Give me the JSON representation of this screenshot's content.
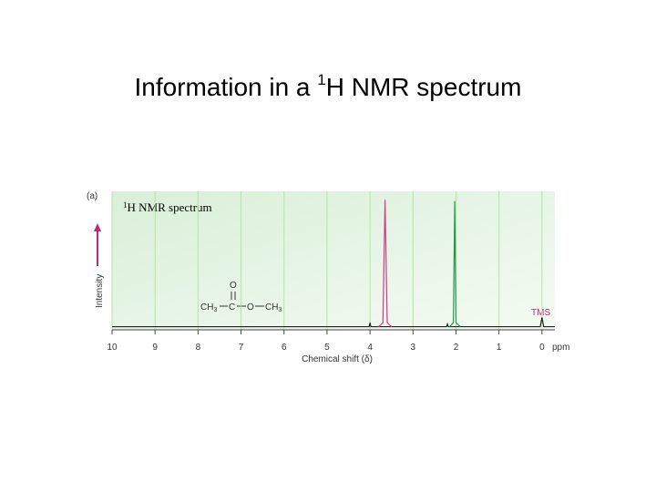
{
  "title_parts": [
    "Information in a ",
    "1",
    "H NMR spectrum"
  ],
  "chart_data": {
    "type": "line",
    "panel_label": "(a)",
    "inset_label_parts": [
      "1",
      "H NMR spectrum"
    ],
    "ylabel": "Intensity",
    "xlabel": "Chemical shift (δ)",
    "xunit": "ppm",
    "xlim": [
      10,
      -0.3
    ],
    "xticks": [
      10,
      9,
      8,
      7,
      6,
      5,
      4,
      3,
      2,
      1,
      0
    ],
    "ylim": [
      0,
      100
    ],
    "grid": true,
    "annotations": {
      "tms": "TMS",
      "molecule": {
        "oxygen_top": "O",
        "left": [
          "CH",
          "3"
        ],
        "carbon": "C",
        "oxygen": "O",
        "right": [
          "CH",
          "3"
        ]
      }
    },
    "series": [
      {
        "color": "#222222",
        "x": [
          10,
          4.02,
          4.0,
          3.98,
          3.75,
          2.22,
          2.2,
          2.18,
          0.04,
          0,
          -0.04,
          -0.3
        ],
        "values": [
          1,
          1,
          4,
          1,
          1,
          1,
          3,
          1,
          1,
          8,
          1,
          1
        ]
      },
      {
        "color": "#d23a8c",
        "x": [
          3.8,
          3.7,
          3.65,
          3.6,
          3.5
        ],
        "values": [
          1,
          4,
          97,
          4,
          1
        ]
      },
      {
        "color": "#1f9a4a",
        "x": [
          2.15,
          2.06,
          2.03,
          2.0,
          1.9
        ],
        "values": [
          1,
          4,
          96,
          4,
          1
        ]
      }
    ]
  }
}
